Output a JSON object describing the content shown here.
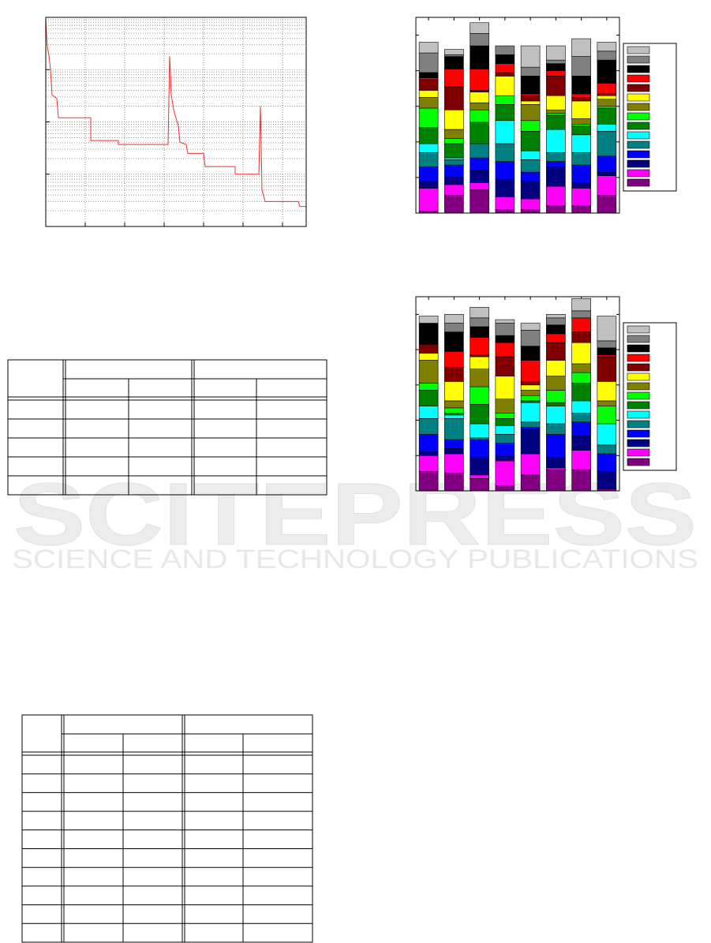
{
  "watermark": {
    "title": "SCITEPRESS",
    "subtitle": "SCIENCE AND TECHNOLOGY PUBLICATIONS"
  },
  "chart_data": [
    {
      "type": "line",
      "color": "#f03030",
      "ylog": true,
      "grid": true,
      "xlim": [
        0,
        330
      ],
      "xticks": [
        0,
        50,
        100,
        150,
        200,
        250,
        300
      ],
      "ylim": [
        0.0001,
        1
      ],
      "yticks": [
        0.0001,
        0.001,
        0.01,
        0.1,
        1
      ],
      "x": [
        0,
        2,
        4,
        6,
        8,
        14,
        16,
        57,
        57,
        92,
        92,
        155,
        157,
        159,
        162,
        168,
        170,
        178,
        180,
        200,
        202,
        240,
        240,
        270,
        272,
        274,
        278,
        320,
        322,
        330
      ],
      "values": [
        0.9,
        0.27,
        0.19,
        0.1,
        0.033,
        0.028,
        0.012,
        0.012,
        0.0044,
        0.0044,
        0.0037,
        0.0037,
        0.18,
        0.033,
        0.017,
        0.0083,
        0.0041,
        0.0037,
        0.0025,
        0.0025,
        0.0014,
        0.0014,
        0.001,
        0.001,
        0.02,
        0.0005,
        0.0003,
        0.0003,
        0.00024,
        0.00024
      ]
    },
    {
      "type": "bar",
      "stacked": true,
      "ylim": [
        0,
        110
      ],
      "yticks": [
        0,
        20,
        40,
        60,
        80,
        100
      ],
      "categories": [
        null,
        null,
        null,
        null,
        null,
        null,
        null,
        null
      ],
      "series": [
        {
          "color": "#800080",
          "values": [
            1,
            10,
            13,
            2,
            2,
            4,
            4,
            10
          ]
        },
        {
          "color": "#ff00ff",
          "values": [
            13,
            6,
            4,
            7,
            6,
            11,
            10,
            11
          ]
        },
        {
          "color": "#000080",
          "values": [
            4,
            4,
            7,
            10,
            10,
            11,
            3,
            2
          ]
        },
        {
          "color": "#0000ff",
          "values": [
            8,
            7,
            7,
            10,
            5,
            3,
            10,
            9
          ]
        },
        {
          "color": "#008080",
          "values": [
            8,
            3,
            8,
            10,
            7,
            5,
            7,
            14
          ]
        },
        {
          "color": "#00ffff",
          "values": [
            5,
            1,
            0,
            13,
            5,
            13,
            10,
            4
          ]
        },
        {
          "color": "#008000",
          "values": [
            9,
            8,
            12,
            9,
            11,
            8,
            5,
            9
          ]
        },
        {
          "color": "#00ff00",
          "values": [
            11,
            3,
            7,
            5,
            6,
            1,
            1,
            1
          ]
        },
        {
          "color": "#808000",
          "values": [
            6,
            5,
            4,
            0,
            9,
            2,
            3,
            4
          ]
        },
        {
          "color": "#ffff00",
          "values": [
            4,
            11,
            6,
            11,
            2,
            8,
            10,
            2
          ]
        },
        {
          "color": "#800000",
          "values": [
            6,
            13,
            1,
            2,
            3,
            11,
            2,
            1
          ]
        },
        {
          "color": "#ff0000",
          "values": [
            1,
            10,
            12,
            5,
            1,
            3,
            2,
            6
          ]
        },
        {
          "color": "#000000",
          "values": [
            3,
            7,
            13,
            5,
            10,
            4,
            10,
            13
          ]
        },
        {
          "color": "#808080",
          "values": [
            11,
            1,
            7,
            5,
            5,
            2,
            11,
            5
          ]
        },
        {
          "color": "#c0c0c0",
          "values": [
            6,
            3,
            6,
            0,
            12,
            8,
            10,
            5
          ]
        }
      ]
    },
    {
      "type": "bar",
      "stacked": true,
      "ylim": [
        0,
        110
      ],
      "yticks": [
        0,
        20,
        40,
        60,
        80,
        100
      ],
      "categories": [
        null,
        null,
        null,
        null,
        null,
        null,
        null,
        null
      ],
      "series": [
        {
          "color": "#800080",
          "values": [
            11,
            10,
            7,
            3,
            9,
            12,
            12,
            1
          ]
        },
        {
          "color": "#ff00ff",
          "values": [
            9,
            11,
            2,
            14,
            12,
            1,
            11,
            0
          ]
        },
        {
          "color": "#000080",
          "values": [
            2,
            3,
            10,
            3,
            14,
            6,
            8,
            10
          ]
        },
        {
          "color": "#0000ff",
          "values": [
            10,
            5,
            10,
            7,
            1,
            13,
            8,
            10
          ]
        },
        {
          "color": "#008080",
          "values": [
            9,
            12,
            1,
            5,
            3,
            6,
            5,
            5
          ]
        },
        {
          "color": "#00ffff",
          "values": [
            7,
            2,
            8,
            5,
            11,
            10,
            7,
            12
          ]
        },
        {
          "color": "#008000",
          "values": [
            9,
            1,
            11,
            4,
            1,
            2,
            10,
            0
          ]
        },
        {
          "color": "#00ff00",
          "values": [
            4,
            3,
            10,
            3,
            3,
            7,
            6,
            10
          ]
        },
        {
          "color": "#808000",
          "values": [
            13,
            4,
            10,
            8,
            3,
            8,
            5,
            3
          ]
        },
        {
          "color": "#ffff00",
          "values": [
            4,
            11,
            7,
            13,
            3,
            9,
            12,
            11
          ]
        },
        {
          "color": "#800000",
          "values": [
            5,
            8,
            1,
            11,
            2,
            10,
            6,
            14
          ]
        },
        {
          "color": "#ff0000",
          "values": [
            0,
            9,
            10,
            8,
            12,
            5,
            8,
            1
          ]
        },
        {
          "color": "#000000",
          "values": [
            12,
            11,
            6,
            4,
            8,
            5,
            0,
            4
          ]
        },
        {
          "color": "#808080",
          "values": [
            0,
            5,
            5,
            7,
            9,
            4,
            4,
            4
          ]
        },
        {
          "color": "#c0c0c0",
          "values": [
            4,
            5,
            6,
            2,
            4,
            2,
            7,
            14
          ]
        }
      ]
    }
  ]
}
